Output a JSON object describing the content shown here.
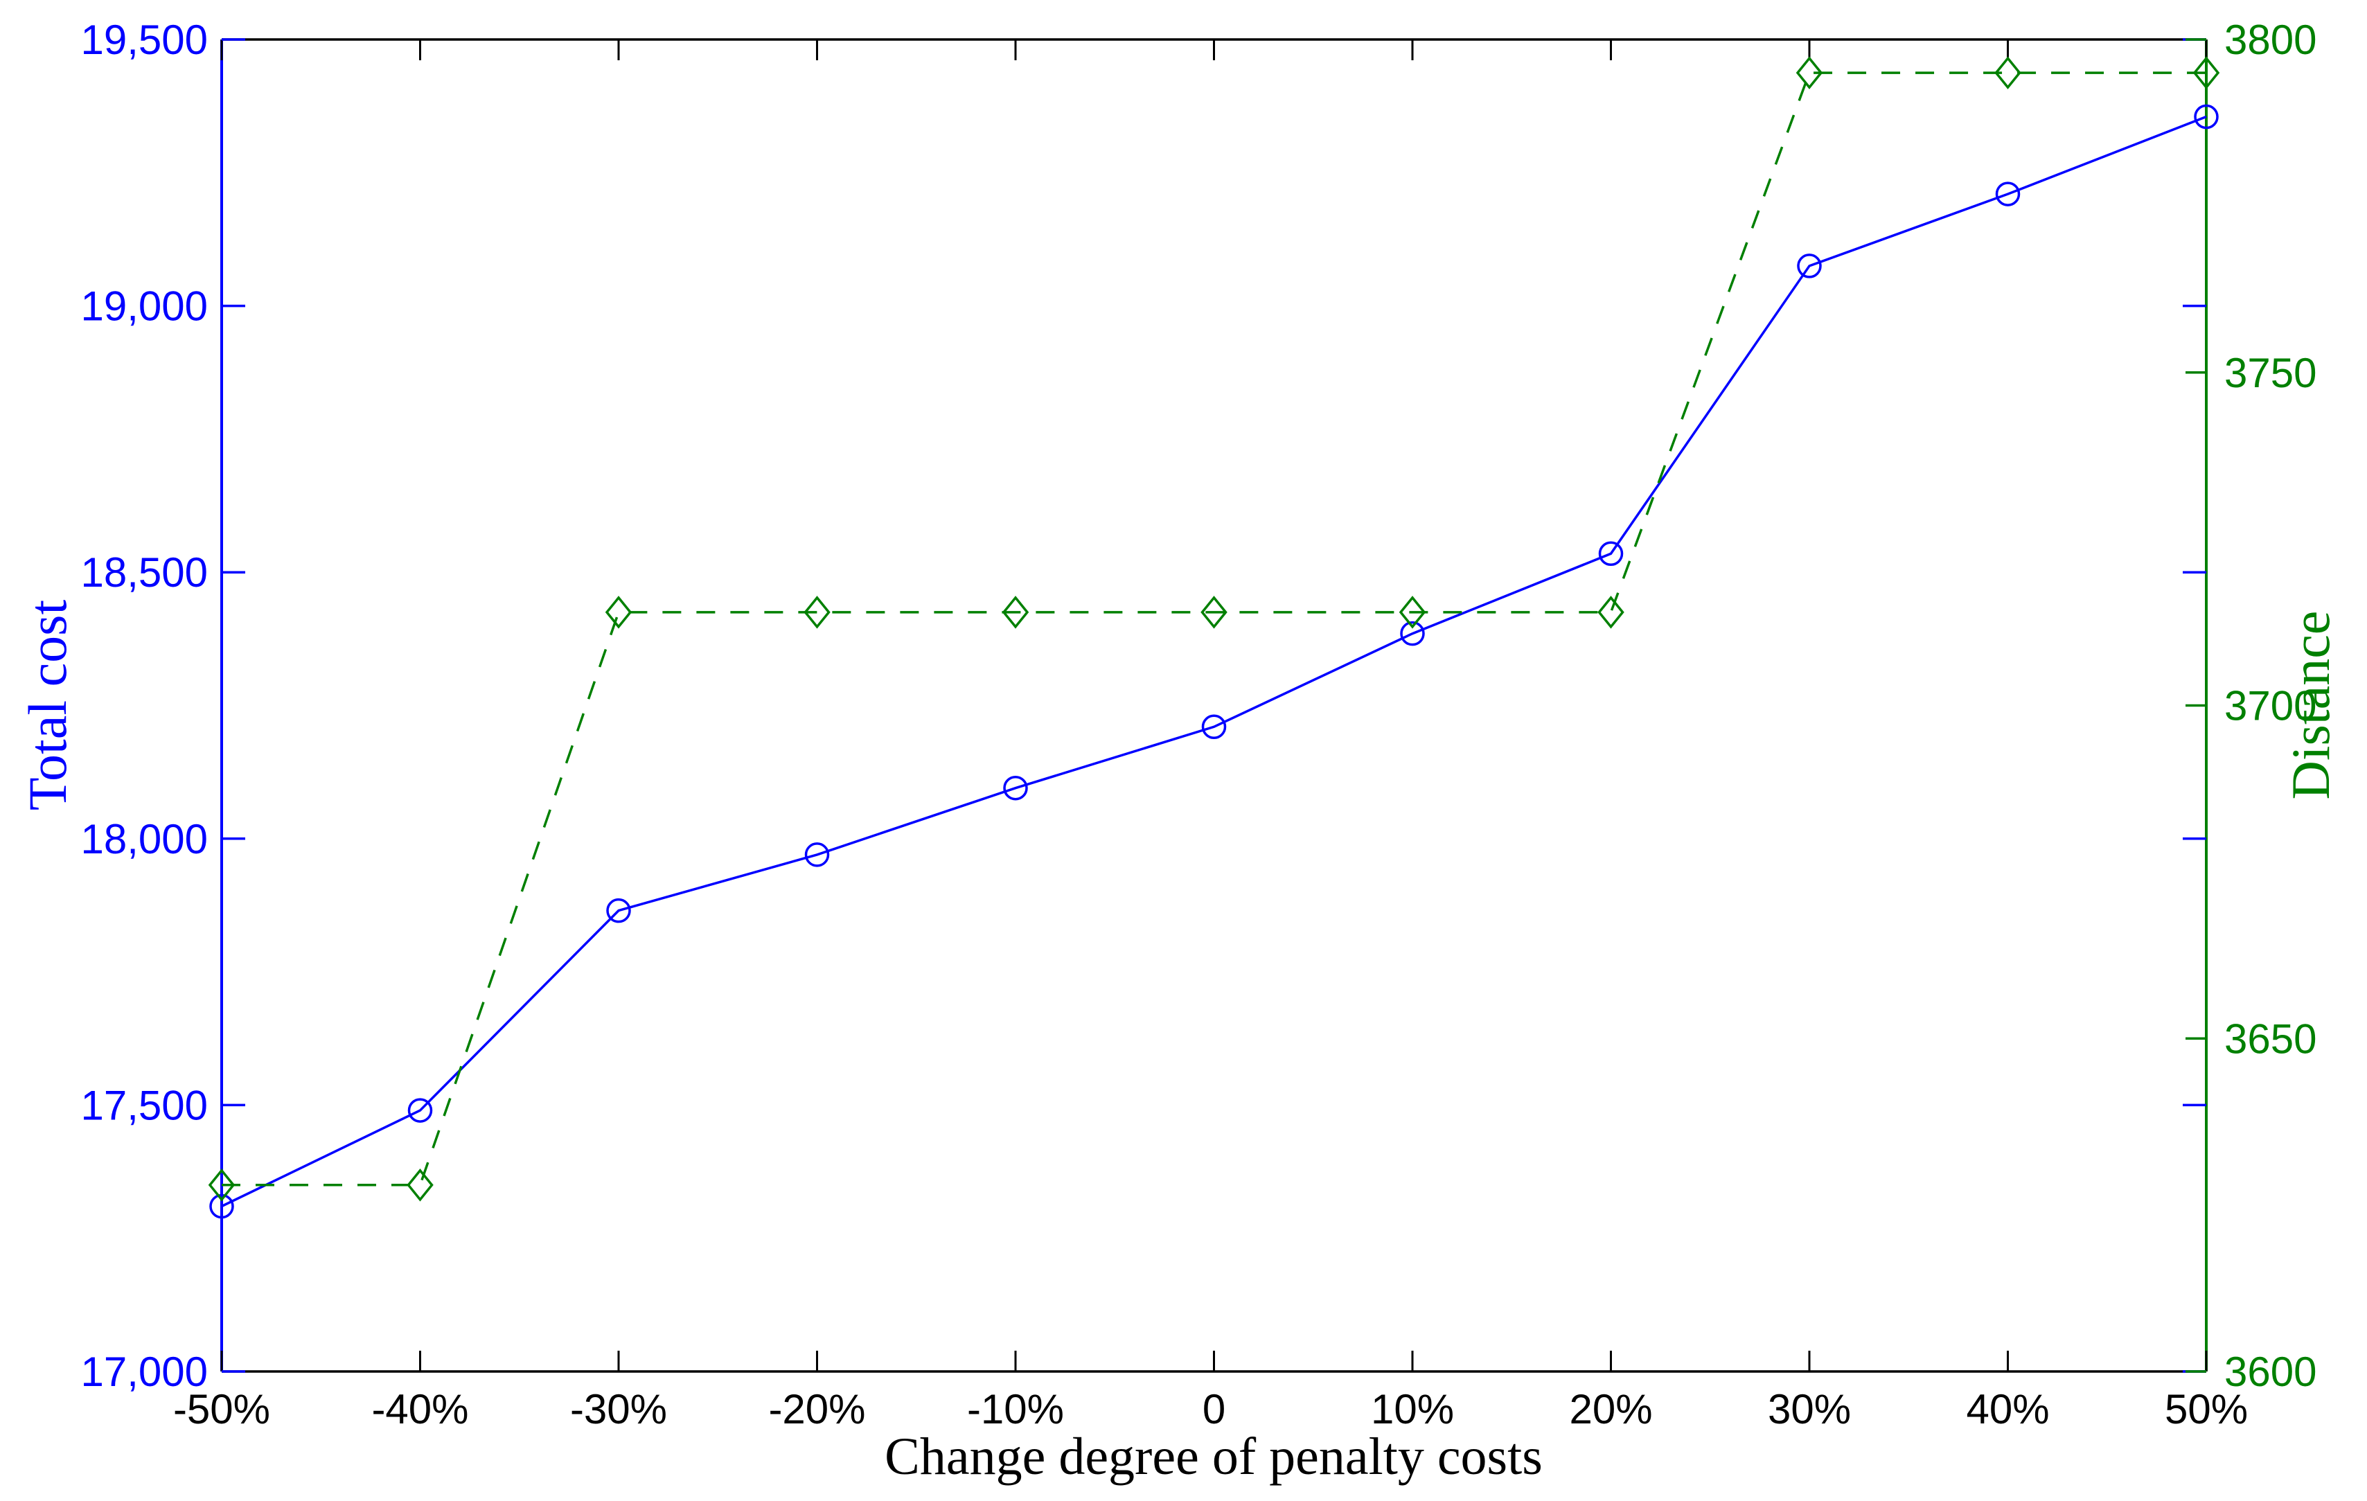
{
  "chart_data": {
    "type": "line",
    "title": "",
    "xlabel": "Change degree of penalty costs",
    "ylabel_left": "Total cost",
    "ylabel_right": "Distance",
    "categories": [
      "-50%",
      "-40%",
      "-30%",
      "-20%",
      "-10%",
      "0",
      "10%",
      "20%",
      "30%",
      "40%",
      "50%"
    ],
    "x_values_percent": [
      -50,
      -40,
      -30,
      -20,
      -10,
      0,
      10,
      20,
      30,
      40,
      50
    ],
    "series": [
      {
        "name": "Total cost",
        "axis": "left",
        "color": "#0000FF",
        "line_style": "solid",
        "marker": "circle",
        "values": [
          17310,
          17490,
          17865,
          17970,
          18095,
          18210,
          18385,
          18535,
          19075,
          19210,
          19355
        ]
      },
      {
        "name": "Distance",
        "axis": "right",
        "color": "#008000",
        "line_style": "dashed",
        "marker": "diamond",
        "values": [
          3628,
          3628,
          3714,
          3714,
          3714,
          3714,
          3714,
          3714,
          3795,
          3795,
          3795
        ]
      }
    ],
    "left_axis": {
      "min": 17000,
      "max": 19500,
      "step": 500,
      "tick_labels": [
        "17,000",
        "17,500",
        "18,000",
        "18,500",
        "19,000",
        "19,500"
      ],
      "color": "#0000FF"
    },
    "right_axis": {
      "min": 3600,
      "max": 3800,
      "step": 50,
      "tick_labels": [
        "3600",
        "3650",
        "3700",
        "3750",
        "3800"
      ],
      "color": "#008000"
    },
    "x_axis": {
      "color": "#000000"
    },
    "grid": false,
    "legend": "none",
    "background": "#FFFFFF"
  }
}
